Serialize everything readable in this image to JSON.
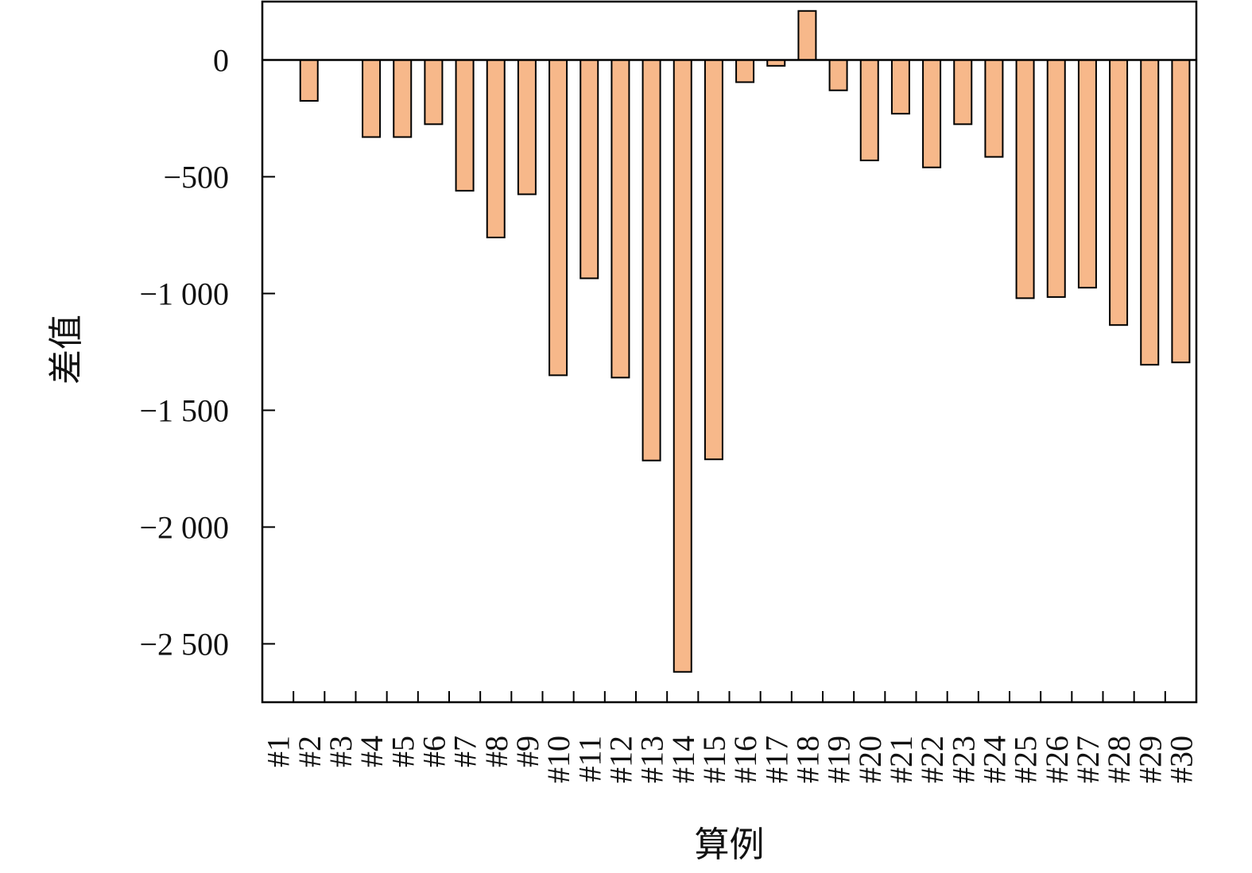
{
  "chart_data": {
    "type": "bar",
    "title": "",
    "xlabel": "算例",
    "ylabel": "差值",
    "categories": [
      "#1",
      "#2",
      "#3",
      "#4",
      "#5",
      "#6",
      "#7",
      "#8",
      "#9",
      "#10",
      "#11",
      "#12",
      "#13",
      "#14",
      "#15",
      "#16",
      "#17",
      "#18",
      "#19",
      "#20",
      "#21",
      "#22",
      "#23",
      "#24",
      "#25",
      "#26",
      "#27",
      "#28",
      "#29",
      "#30"
    ],
    "values": [
      0,
      -175,
      0,
      -330,
      -330,
      -275,
      -560,
      -760,
      -575,
      -1350,
      -935,
      -1360,
      -1715,
      -2620,
      -1710,
      -95,
      -25,
      210,
      -130,
      -430,
      -230,
      -460,
      -275,
      -415,
      -1020,
      -1015,
      -975,
      -1135,
      -1305,
      -1295
    ],
    "ylim": [
      -2750,
      250
    ],
    "yticks": [
      0,
      -500,
      -1000,
      -1500,
      -2000,
      -2500
    ],
    "ytick_labels": [
      "0",
      "−500",
      "−1 000",
      "−1 500",
      "−2 000",
      "−2 500"
    ],
    "grid": false,
    "legend": "none",
    "bar_color": "#f7b88a",
    "bar_edge_color": "#000000"
  }
}
